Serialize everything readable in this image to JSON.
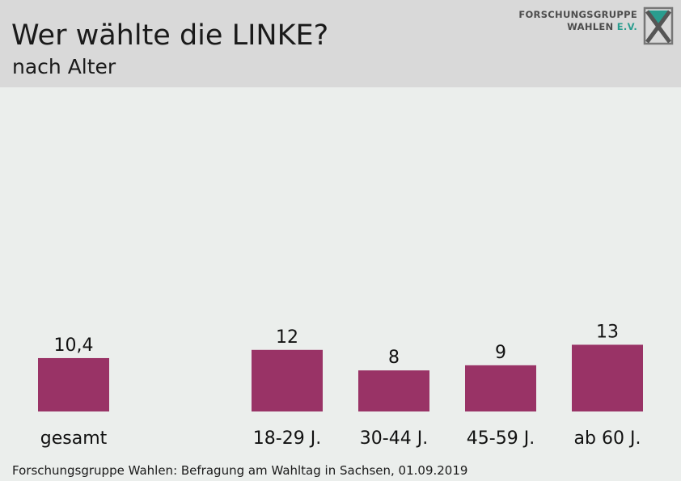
{
  "header": {
    "title": "Wer wählte die LINKE?",
    "subtitle": "nach Alter"
  },
  "logo": {
    "line1": "FORSCHUNGSGRUPPE",
    "line2_main": "WAHLEN",
    "line2_suffix": "E.V.",
    "icon": "x-ballot-icon"
  },
  "chart_data": {
    "type": "bar",
    "categories": [
      "gesamt",
      "18-29 J.",
      "30-44 J.",
      "45-59 J.",
      "ab 60 J."
    ],
    "values": [
      10.4,
      12,
      8,
      9,
      13
    ],
    "value_labels": [
      "10,4",
      "12",
      "8",
      "9",
      "13"
    ],
    "title": "Wer wählte die LINKE?",
    "subtitle": "nach Alter",
    "xlabel": "",
    "ylabel": "",
    "ylim": [
      0,
      100
    ],
    "grid": false,
    "bar_color": "#993366"
  },
  "footer": {
    "source": "Forschungsgruppe Wahlen: Befragung am Wahltag in Sachsen, 01.09.2019"
  },
  "colors": {
    "header_bg": "#d9d9d9",
    "page_bg": "#ebeeec",
    "bar": "#993366",
    "logo_accent": "#2a9d8f"
  }
}
